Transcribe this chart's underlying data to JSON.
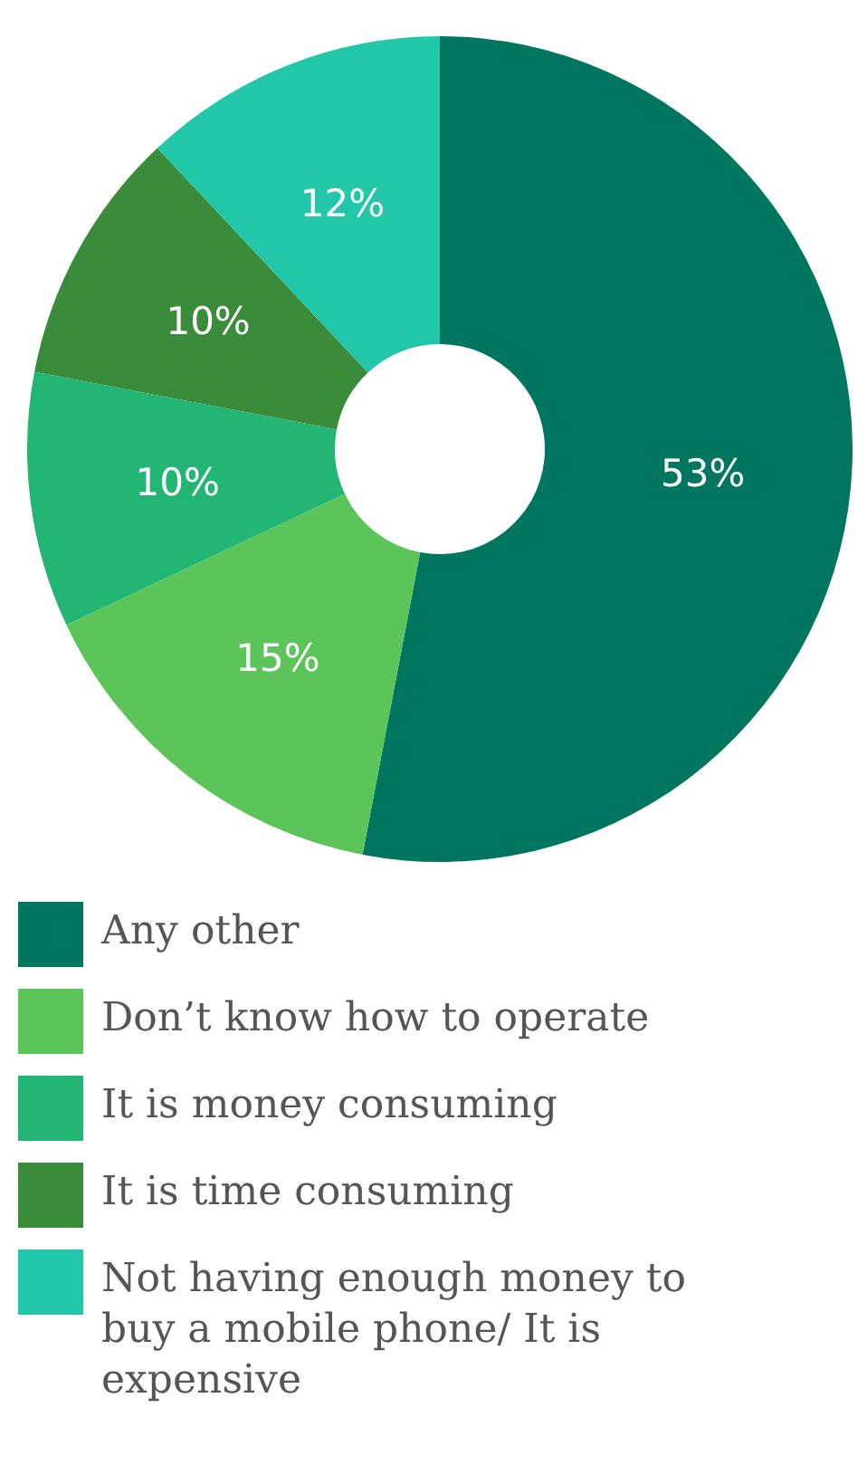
{
  "chart_data": {
    "type": "donut",
    "categories": [
      "Any other",
      "Don’t know how to operate",
      "It is money consuming",
      "It is time consuming",
      "Not having enough money to buy a mobile phone/ It is expensive"
    ],
    "values": [
      53,
      15,
      10,
      10,
      12
    ],
    "colors": [
      "#00755f",
      "#5bc55a",
      "#22b573",
      "#3a8c3a",
      "#21c7a8"
    ],
    "value_labels": [
      "53%",
      "15%",
      "10%",
      "10%",
      "12%"
    ],
    "legend": "bottom"
  }
}
